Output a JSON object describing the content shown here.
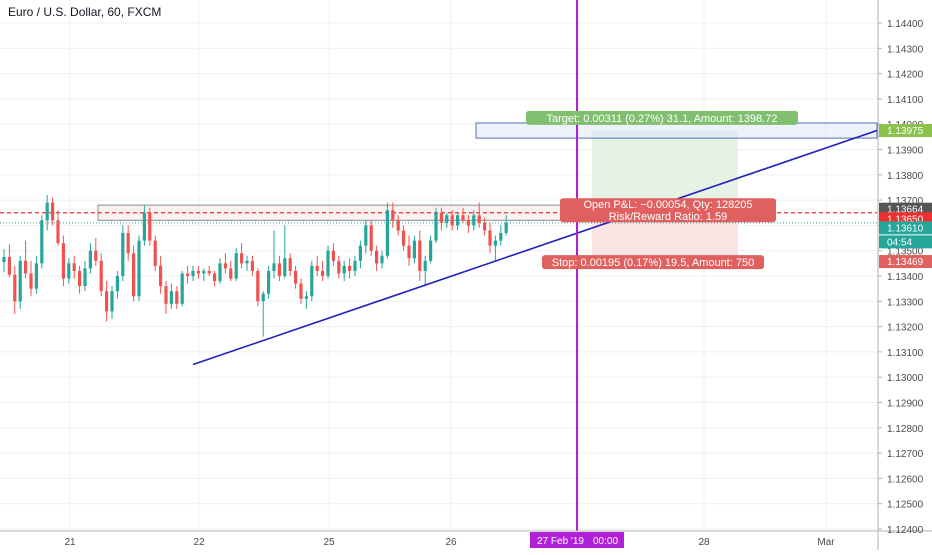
{
  "chart_data": {
    "type": "candlestick",
    "title": "Euro / U.S. Dollar, 60, FXCM",
    "y_axis": {
      "ticks": [
        "1.14400",
        "1.14300",
        "1.14200",
        "1.14100",
        "1.14000",
        "1.13900",
        "1.13800",
        "1.13700",
        "1.13600",
        "1.13500",
        "1.13400",
        "1.13300",
        "1.13200",
        "1.13100",
        "1.13000",
        "1.12900",
        "1.12800",
        "1.12700",
        "1.12600",
        "1.12500",
        "1.12400"
      ],
      "ylim": [
        1.1237,
        1.1451
      ]
    },
    "x_axis": {
      "ticks": [
        "21",
        "22",
        "25",
        "26",
        "28",
        "Mar"
      ],
      "highlight_label": "27 Feb '19",
      "highlight_time": "00:00"
    },
    "candles": [
      [
        1.13455,
        1.13505,
        1.13415,
        1.13475
      ],
      [
        1.13475,
        1.13525,
        1.13395,
        1.13405
      ],
      [
        1.13405,
        1.1344,
        1.1325,
        1.133
      ],
      [
        1.133,
        1.1348,
        1.1327,
        1.1346
      ],
      [
        1.1346,
        1.1354,
        1.1339,
        1.1341
      ],
      [
        1.1341,
        1.1346,
        1.1332,
        1.1335
      ],
      [
        1.1335,
        1.1348,
        1.1333,
        1.1345
      ],
      [
        1.1345,
        1.1364,
        1.1343,
        1.1362
      ],
      [
        1.1362,
        1.1372,
        1.1358,
        1.1369
      ],
      [
        1.1369,
        1.1371,
        1.136,
        1.1362
      ],
      [
        1.1362,
        1.1366,
        1.1352,
        1.1353
      ],
      [
        1.1353,
        1.1356,
        1.1336,
        1.1339
      ],
      [
        1.1339,
        1.1347,
        1.1337,
        1.1345
      ],
      [
        1.1345,
        1.1348,
        1.1339,
        1.1342
      ],
      [
        1.1342,
        1.1344,
        1.1333,
        1.1336
      ],
      [
        1.1336,
        1.1346,
        1.1334,
        1.1343
      ],
      [
        1.1343,
        1.1353,
        1.1341,
        1.135
      ],
      [
        1.135,
        1.1355,
        1.1344,
        1.1346
      ],
      [
        1.1346,
        1.1349,
        1.1332,
        1.1334
      ],
      [
        1.1334,
        1.1338,
        1.1322,
        1.1326
      ],
      [
        1.1326,
        1.1336,
        1.1323,
        1.1334
      ],
      [
        1.1334,
        1.1342,
        1.1331,
        1.134
      ],
      [
        1.134,
        1.136,
        1.1338,
        1.1357
      ],
      [
        1.1357,
        1.136,
        1.1346,
        1.1349
      ],
      [
        1.1349,
        1.1352,
        1.133,
        1.1332
      ],
      [
        1.1332,
        1.1356,
        1.133,
        1.1354
      ],
      [
        1.1354,
        1.1368,
        1.1352,
        1.1365
      ],
      [
        1.1365,
        1.1367,
        1.1352,
        1.1354
      ],
      [
        1.1354,
        1.1356,
        1.1342,
        1.1344
      ],
      [
        1.1344,
        1.1348,
        1.1333,
        1.1336
      ],
      [
        1.1336,
        1.1338,
        1.1325,
        1.1329
      ],
      [
        1.1329,
        1.1337,
        1.1327,
        1.1334
      ],
      [
        1.1334,
        1.1336,
        1.1327,
        1.1329
      ],
      [
        1.1329,
        1.1342,
        1.1328,
        1.1341
      ],
      [
        1.1341,
        1.1344,
        1.1337,
        1.134
      ],
      [
        1.134,
        1.1344,
        1.1338,
        1.1342
      ],
      [
        1.1342,
        1.1344,
        1.1339,
        1.1341
      ],
      [
        1.1341,
        1.1343,
        1.1338,
        1.1342
      ],
      [
        1.1342,
        1.1344,
        1.134,
        1.1341
      ],
      [
        1.1341,
        1.1342,
        1.1336,
        1.1338
      ],
      [
        1.1338,
        1.1347,
        1.1337,
        1.1345
      ],
      [
        1.1345,
        1.1349,
        1.1341,
        1.1343
      ],
      [
        1.1343,
        1.1346,
        1.1338,
        1.1339
      ],
      [
        1.1339,
        1.1351,
        1.1338,
        1.1349
      ],
      [
        1.1349,
        1.1353,
        1.1343,
        1.1345
      ],
      [
        1.1345,
        1.1348,
        1.1342,
        1.1346
      ],
      [
        1.1346,
        1.1348,
        1.134,
        1.1342
      ],
      [
        1.1342,
        1.1343,
        1.1328,
        1.133
      ],
      [
        1.133,
        1.1334,
        1.1316,
        1.1333
      ],
      [
        1.1333,
        1.1344,
        1.1331,
        1.1342
      ],
      [
        1.1342,
        1.1358,
        1.1339,
        1.1345
      ],
      [
        1.1345,
        1.1348,
        1.1338,
        1.134
      ],
      [
        1.134,
        1.136,
        1.1339,
        1.1347
      ],
      [
        1.1347,
        1.1349,
        1.134,
        1.1342
      ],
      [
        1.1342,
        1.1344,
        1.1335,
        1.1337
      ],
      [
        1.1337,
        1.1339,
        1.1329,
        1.1331
      ],
      [
        1.1331,
        1.1334,
        1.1327,
        1.1332
      ],
      [
        1.1332,
        1.1346,
        1.133,
        1.1344
      ],
      [
        1.1344,
        1.1348,
        1.134,
        1.1342
      ],
      [
        1.1342,
        1.1346,
        1.1338,
        1.134
      ],
      [
        1.134,
        1.1352,
        1.1339,
        1.135
      ],
      [
        1.135,
        1.1353,
        1.1344,
        1.1346
      ],
      [
        1.1346,
        1.1348,
        1.1339,
        1.1341
      ],
      [
        1.1341,
        1.1346,
        1.1338,
        1.1344
      ],
      [
        1.1344,
        1.1347,
        1.1339,
        1.1342
      ],
      [
        1.1342,
        1.1348,
        1.134,
        1.1346
      ],
      [
        1.1346,
        1.1354,
        1.1343,
        1.1352
      ],
      [
        1.1352,
        1.1362,
        1.1349,
        1.136
      ],
      [
        1.136,
        1.1362,
        1.1348,
        1.135
      ],
      [
        1.135,
        1.1352,
        1.1342,
        1.1345
      ],
      [
        1.1345,
        1.135,
        1.1343,
        1.1348
      ],
      [
        1.1348,
        1.1369,
        1.1347,
        1.1366
      ],
      [
        1.1366,
        1.1369,
        1.1359,
        1.1362
      ],
      [
        1.1362,
        1.1364,
        1.1356,
        1.1358
      ],
      [
        1.1358,
        1.136,
        1.135,
        1.1352
      ],
      [
        1.1352,
        1.1356,
        1.1344,
        1.1347
      ],
      [
        1.1347,
        1.1356,
        1.1345,
        1.1354
      ],
      [
        1.1354,
        1.1358,
        1.1338,
        1.1342
      ],
      [
        1.1342,
        1.1348,
        1.1336,
        1.1346
      ],
      [
        1.1346,
        1.1356,
        1.1345,
        1.1354
      ],
      [
        1.1354,
        1.1367,
        1.1353,
        1.1365
      ],
      [
        1.1365,
        1.1367,
        1.1358,
        1.1361
      ],
      [
        1.1361,
        1.1365,
        1.1359,
        1.1364
      ],
      [
        1.1364,
        1.1366,
        1.1358,
        1.136
      ],
      [
        1.136,
        1.1365,
        1.1358,
        1.1364
      ],
      [
        1.1364,
        1.1367,
        1.1361,
        1.1362
      ],
      [
        1.1362,
        1.1364,
        1.1357,
        1.136
      ],
      [
        1.136,
        1.1366,
        1.1358,
        1.1364
      ],
      [
        1.1364,
        1.1369,
        1.1359,
        1.1361
      ],
      [
        1.1361,
        1.1363,
        1.1356,
        1.1358
      ],
      [
        1.1358,
        1.1361,
        1.1349,
        1.1352
      ],
      [
        1.1352,
        1.1356,
        1.1346,
        1.1354
      ],
      [
        1.1354,
        1.136,
        1.1352,
        1.1357
      ],
      [
        1.1357,
        1.1364,
        1.1356,
        1.1361
      ]
    ],
    "position": {
      "side": "long",
      "entry_price": 1.13664,
      "target_price": 1.13975,
      "stop_price": 1.13469,
      "target_label": "Target: 0.00311 (0.27%) 31.1, Amount: 1398.72",
      "stop_label": "Stop: 0.00195 (0.17%) 19.5, Amount: 750",
      "pnl_label": "Open P&L: −0.00054, Qty: 128205",
      "rr_label": "Risk/Reward Ratio: 1.59"
    },
    "horizontal_lines": [
      {
        "price": 1.1365,
        "style": "dashed",
        "color": "#ef2f2f"
      },
      {
        "price": 1.1361,
        "style": "dotted",
        "color": "#26a69a"
      }
    ],
    "trendlines": [
      {
        "from_price": 1.1305,
        "to_price": 1.13975,
        "color": "#1f1fbf"
      }
    ],
    "price_labels": [
      {
        "text": "1.13975",
        "bg": "#8bc34a",
        "fg": "#ffffff"
      },
      {
        "text": "1.13664",
        "bg": "#555555",
        "fg": "#ffffff"
      },
      {
        "text": "1.13650",
        "bg": "#ef2f2f",
        "fg": "#ffffff"
      },
      {
        "text": "1.13610",
        "bg": "#26a69a",
        "fg": "#ffffff"
      },
      {
        "text": "04:54",
        "bg": "#26a69a",
        "fg": "#ffffff"
      },
      {
        "text": "1.13469",
        "bg": "#e06060",
        "fg": "#ffffff"
      }
    ],
    "colors": {
      "up": "#26a69a",
      "down": "#ef5350",
      "cursor": "#b020d8",
      "grid": "#edf0f3",
      "target_zone": "#e6f2e3",
      "stop_zone": "#f9e3e3"
    }
  }
}
